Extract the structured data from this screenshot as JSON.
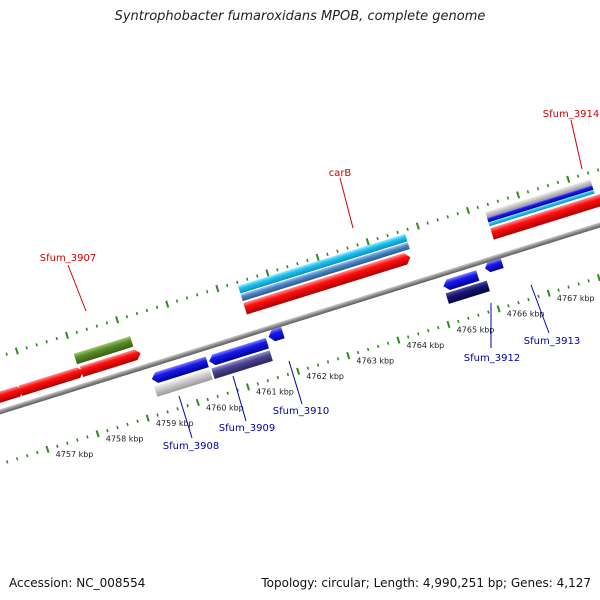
{
  "title": "Syntrophobacter fumaroxidans MPOB, complete genome",
  "footer": {
    "accession": "Accession: NC_008554",
    "summary": "Topology: circular; Length: 4,990,251 bp; Genes: 4,127"
  },
  "scale": {
    "labels": [
      "4757 kbp",
      "4758 kbp",
      "4759 kbp",
      "4760 kbp",
      "4761 kbp",
      "4762 kbp",
      "4763 kbp",
      "4764 kbp",
      "4765 kbp",
      "4766 kbp",
      "4767 kbp"
    ]
  },
  "gene_labels": [
    {
      "name": "Sfum_3907",
      "color": "#d00000"
    },
    {
      "name": "carB",
      "color": "#d00000"
    },
    {
      "name": "Sfum_3914",
      "color": "#d00000"
    },
    {
      "name": "Sfum_3908",
      "color": "#0000aa"
    },
    {
      "name": "Sfum_3909",
      "color": "#0000aa"
    },
    {
      "name": "Sfum_3910",
      "color": "#0000aa"
    },
    {
      "name": "Sfum_3912",
      "color": "#0000aa"
    },
    {
      "name": "Sfum_3913",
      "color": "#0000aa"
    }
  ],
  "colors": {
    "backbone": "#8a8a8a",
    "tick_green": "#2e8b1e",
    "gene_red": "#f01010",
    "gene_blue": "#1a1ae0",
    "gene_navy": "#101070",
    "gene_cyan": "#1ec0f0",
    "gene_steel": "#4a88c8",
    "gene_olive": "#5a8a28",
    "gene_gray": "#c8c8c8",
    "gene_slate": "#4a4490"
  }
}
